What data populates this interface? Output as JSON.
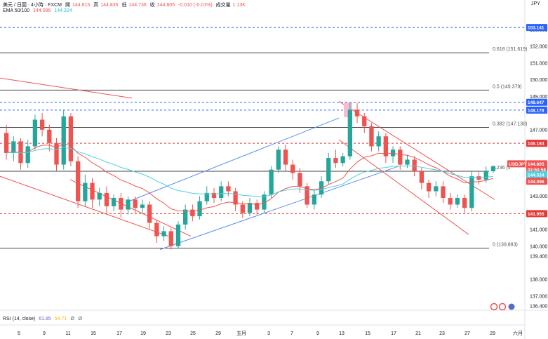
{
  "header": {
    "symbol": "美元 / 日圓 · 4小時 · FXCM",
    "open_label": "開",
    "open": "144.815",
    "high_label": "高",
    "high": "144.835",
    "low_label": "低",
    "low": "144.736",
    "close_label": "收",
    "close": "144.805",
    "change": "-0.010 (-0.01%)",
    "volume_label": "成交量",
    "volume": "1.13K",
    "ema_label": "EMA 50/100",
    "ema50": "144.096",
    "ema100": "144.324",
    "currency": "JPY"
  },
  "rsi": {
    "label": "RSI (14, close)",
    "v1": "61.85",
    "v2": "54.71",
    "v3": "∅",
    "v4": "∅"
  },
  "colors": {
    "up": "#26a69a",
    "down": "#ef5350",
    "ema50": "#ef5350",
    "ema100": "#4dd0e1",
    "channel": "#5b8def",
    "fib": "#444444",
    "dashed_blue": "#2962ff",
    "dashed_red": "#e53935"
  },
  "chart_data": {
    "type": "candlestick",
    "symbol": "USDJPY",
    "ylim": [
      135.9,
      154.2
    ],
    "y_ticks": [
      "153.000",
      "152.000",
      "151.000",
      "150.000",
      "149.000",
      "147.000",
      "145.000",
      "143.000",
      "142.000",
      "141.000",
      "140.000",
      "139.400",
      "138.000",
      "137.000",
      "136.400"
    ],
    "x_ticks": [
      "5",
      "9",
      "11",
      "15",
      "17",
      "19",
      "23",
      "25",
      "29",
      "五月",
      "3",
      "7",
      "9",
      "13",
      "15",
      "17",
      "21",
      "23",
      "27",
      "29",
      "六月"
    ],
    "fib_levels": [
      {
        "label": "0.618 (151.619)",
        "value": 151.619
      },
      {
        "label": "0.5 (149.379)",
        "value": 149.379
      },
      {
        "label": "0.382 (147.138)",
        "value": 147.138
      },
      {
        "label": "0.236 (1",
        "value": 144.5
      },
      {
        "label": "0 (139.883)",
        "value": 139.883
      }
    ],
    "horizontal_levels": [
      {
        "label": "153.141",
        "value": 153.141,
        "style": "dashed",
        "color": "#2962ff"
      },
      {
        "label": "148.647",
        "value": 148.647,
        "style": "dashed",
        "color": "#2962ff"
      },
      {
        "label": "148.178",
        "value": 148.178,
        "style": "dashed",
        "color": "#2962ff"
      },
      {
        "label": "146.184",
        "value": 146.184,
        "style": "dashed",
        "color": "#e53935"
      },
      {
        "label": "141.955",
        "value": 141.955,
        "style": "dashed",
        "color": "#e53935"
      }
    ],
    "price_tags": [
      {
        "label": "USDJPY",
        "value": "144.805",
        "extra": "02:50:58",
        "color": "#ef5350"
      },
      {
        "label": "EMA100",
        "value": "144.324",
        "color": "#4dd0e1"
      },
      {
        "label": "EMA50",
        "value": "144.096",
        "color": "#ef5350"
      }
    ],
    "candles": [
      [
        146.8,
        145.6,
        147.3,
        145.2
      ],
      [
        145.6,
        146.3,
        146.6,
        145.1
      ],
      [
        146.3,
        145.0,
        146.5,
        144.6
      ],
      [
        145.0,
        146.0,
        146.4,
        144.7
      ],
      [
        146.0,
        147.6,
        147.9,
        145.8
      ],
      [
        147.6,
        147.0,
        148.0,
        146.6
      ],
      [
        147.0,
        146.2,
        147.3,
        145.7
      ],
      [
        146.2,
        144.9,
        146.5,
        144.5
      ],
      [
        144.9,
        147.8,
        148.2,
        144.6
      ],
      [
        147.8,
        145.1,
        148.0,
        144.8
      ],
      [
        145.1,
        142.7,
        145.4,
        142.3
      ],
      [
        142.7,
        143.8,
        144.3,
        142.4
      ],
      [
        143.8,
        142.8,
        144.1,
        142.3
      ],
      [
        142.8,
        143.2,
        143.5,
        142.4
      ],
      [
        143.2,
        142.4,
        143.6,
        142.0
      ],
      [
        142.4,
        142.9,
        143.1,
        142.1
      ],
      [
        142.9,
        142.2,
        143.2,
        141.7
      ],
      [
        142.2,
        142.8,
        143.0,
        141.9
      ],
      [
        142.8,
        142.3,
        143.0,
        142.0
      ],
      [
        142.3,
        142.5,
        142.8,
        142.0
      ],
      [
        142.5,
        141.4,
        142.7,
        141.0
      ],
      [
        141.4,
        140.6,
        141.6,
        140.2
      ],
      [
        140.6,
        140.9,
        141.2,
        140.3
      ],
      [
        140.9,
        140.0,
        141.1,
        139.8
      ],
      [
        140.0,
        141.3,
        141.5,
        139.9
      ],
      [
        141.3,
        142.2,
        142.5,
        141.0
      ],
      [
        142.2,
        141.8,
        142.5,
        141.5
      ],
      [
        141.8,
        142.7,
        143.0,
        141.6
      ],
      [
        142.7,
        143.2,
        143.6,
        142.5
      ],
      [
        143.2,
        142.9,
        143.5,
        142.6
      ],
      [
        142.9,
        143.6,
        143.9,
        142.7
      ],
      [
        143.6,
        143.3,
        143.9,
        143.0
      ],
      [
        143.3,
        142.5,
        143.5,
        142.1
      ],
      [
        142.5,
        142.0,
        142.7,
        141.7
      ],
      [
        142.0,
        142.6,
        142.9,
        141.8
      ],
      [
        142.6,
        142.2,
        142.8,
        141.9
      ],
      [
        142.2,
        143.1,
        143.3,
        142.0
      ],
      [
        143.1,
        144.6,
        144.8,
        142.9
      ],
      [
        144.6,
        145.8,
        146.0,
        144.4
      ],
      [
        145.8,
        144.9,
        146.1,
        144.5
      ],
      [
        144.9,
        144.4,
        145.2,
        144.0
      ],
      [
        144.4,
        143.6,
        144.7,
        143.2
      ],
      [
        143.6,
        142.5,
        143.8,
        142.3
      ],
      [
        142.5,
        143.1,
        143.4,
        142.2
      ],
      [
        143.1,
        143.9,
        144.2,
        142.9
      ],
      [
        143.9,
        145.3,
        145.6,
        143.7
      ],
      [
        145.3,
        145.0,
        145.8,
        144.7
      ],
      [
        145.0,
        145.4,
        145.6,
        144.8
      ],
      [
        145.4,
        148.2,
        148.6,
        145.2
      ],
      [
        148.2,
        147.8,
        148.6,
        147.4
      ],
      [
        147.8,
        147.2,
        148.0,
        146.8
      ],
      [
        147.2,
        146.0,
        147.4,
        145.7
      ],
      [
        146.0,
        146.6,
        146.9,
        145.7
      ],
      [
        146.6,
        145.4,
        146.8,
        145.0
      ],
      [
        145.4,
        145.8,
        146.0,
        145.0
      ],
      [
        145.8,
        144.9,
        146.0,
        144.6
      ],
      [
        144.9,
        145.2,
        145.5,
        144.7
      ],
      [
        145.2,
        144.5,
        145.4,
        144.2
      ],
      [
        144.5,
        143.8,
        144.7,
        143.4
      ],
      [
        143.8,
        143.3,
        144.0,
        142.9
      ],
      [
        143.3,
        143.6,
        143.9,
        143.0
      ],
      [
        143.6,
        142.9,
        143.9,
        142.6
      ],
      [
        142.9,
        142.5,
        143.2,
        142.2
      ],
      [
        142.5,
        142.9,
        143.1,
        142.3
      ],
      [
        142.9,
        142.3,
        143.1,
        142.0
      ],
      [
        142.3,
        144.2,
        144.5,
        142.1
      ],
      [
        144.2,
        144.0,
        144.5,
        143.7
      ],
      [
        144.0,
        144.5,
        144.8,
        143.8
      ],
      [
        144.5,
        144.8,
        144.84,
        144.4
      ]
    ],
    "legend_placement": "top-left",
    "grid": false
  }
}
